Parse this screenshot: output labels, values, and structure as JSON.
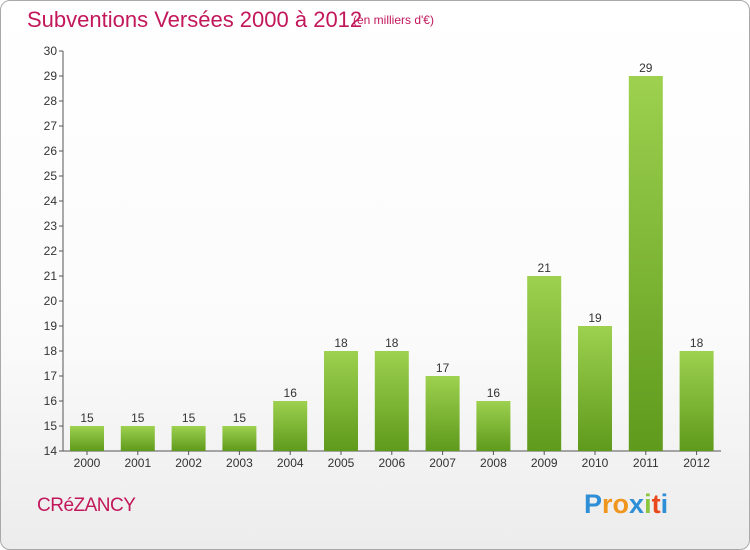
{
  "chart_data": {
    "type": "bar",
    "title": "Subventions Versées 2000 à 2012",
    "subtitle": "(en milliers d'€)",
    "categories": [
      "2000",
      "2001",
      "2002",
      "2003",
      "2004",
      "2005",
      "2006",
      "2007",
      "2008",
      "2009",
      "2010",
      "2011",
      "2012"
    ],
    "values": [
      15,
      15,
      15,
      15,
      16,
      18,
      18,
      17,
      16,
      21,
      19,
      29,
      18
    ],
    "ylim": [
      14,
      30
    ],
    "yticks": [
      14,
      15,
      16,
      17,
      18,
      19,
      20,
      21,
      22,
      23,
      24,
      25,
      26,
      27,
      28,
      29,
      30
    ],
    "grid": false,
    "bar_color_top": "#9dd14f",
    "bar_color_bottom": "#5f9a1c"
  },
  "commune": "CRéZANCY",
  "brand": {
    "letters": [
      "P",
      "r",
      "o",
      "x",
      "i",
      "t",
      "i"
    ],
    "colors": [
      "#2f8fd6",
      "#f0961e",
      "#f0961e",
      "#2f8fd6",
      "#8cc63f",
      "#e8491d",
      "#2f8fd6"
    ]
  },
  "colors": {
    "accent": "#c2185b",
    "axis": "#555555"
  }
}
